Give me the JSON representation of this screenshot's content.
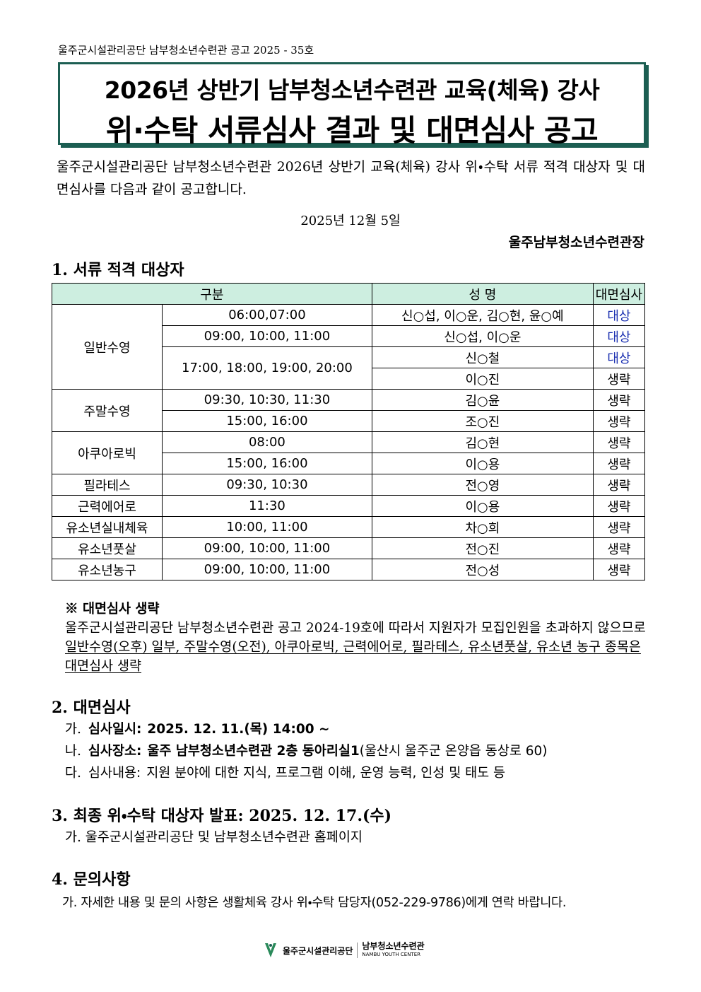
{
  "header": {
    "notice_no": "울주군시설관리공단 남부청소년수련관 공고 2025 - 35호",
    "title_line1": "2026년 상반기 남부청소년수련관 교육(체육) 강사",
    "title_line2": "위·수탁 서류심사 결과 및 대면심사 공고"
  },
  "intro": "울주군시설관리공단 남부청소년수련관 2026년 상반기 교육(체육) 강사 위・수탁 서류 적격 대상자 및 대면심사를 다음과 같이 공고합니다.",
  "date": "2025년 12월 5일",
  "issuer": "울주남부청소년수련관장",
  "section1": {
    "heading": "1. 서류 적격 대상자",
    "table": {
      "headers": [
        "구분",
        "성 명",
        "대면심사"
      ],
      "groups": [
        {
          "category": "일반수영",
          "slots": [
            {
              "time": "06:00,07:00",
              "entries": [
                {
                  "name": "신○섭, 이○운, 김○현, 윤○예",
                  "result": "대상",
                  "color": "#1a2fb0"
                }
              ]
            },
            {
              "time": "09:00, 10:00, 11:00",
              "entries": [
                {
                  "name": "신○섭, 이○운",
                  "result": "대상",
                  "color": "#1a2fb0"
                }
              ]
            },
            {
              "time": "17:00, 18:00, 19:00, 20:00",
              "entries": [
                {
                  "name": "신○철",
                  "result": "대상",
                  "color": "#1a2fb0"
                },
                {
                  "name": "이○진",
                  "result": "생략",
                  "color": "#000000"
                }
              ]
            }
          ]
        },
        {
          "category": "주말수영",
          "slots": [
            {
              "time": "09:30, 10:30, 11:30",
              "entries": [
                {
                  "name": "김○윤",
                  "result": "생략",
                  "color": "#000000"
                }
              ]
            },
            {
              "time": "15:00, 16:00",
              "entries": [
                {
                  "name": "조○진",
                  "result": "생략",
                  "color": "#000000"
                }
              ]
            }
          ]
        },
        {
          "category": "아쿠아로빅",
          "slots": [
            {
              "time": "08:00",
              "entries": [
                {
                  "name": "김○현",
                  "result": "생략",
                  "color": "#000000"
                }
              ]
            },
            {
              "time": "15:00, 16:00",
              "entries": [
                {
                  "name": "이○용",
                  "result": "생략",
                  "color": "#000000"
                }
              ]
            }
          ]
        },
        {
          "category": "필라테스",
          "slots": [
            {
              "time": "09:30, 10:30",
              "entries": [
                {
                  "name": "전○영",
                  "result": "생략",
                  "color": "#000000"
                }
              ]
            }
          ]
        },
        {
          "category": "근력에어로",
          "slots": [
            {
              "time": "11:30",
              "entries": [
                {
                  "name": "이○용",
                  "result": "생략",
                  "color": "#000000"
                }
              ]
            }
          ]
        },
        {
          "category": "유소년실내체육",
          "slots": [
            {
              "time": "10:00, 11:00",
              "entries": [
                {
                  "name": "차○희",
                  "result": "생략",
                  "color": "#000000"
                }
              ]
            }
          ]
        },
        {
          "category": "유소년풋살",
          "slots": [
            {
              "time": "09:00, 10:00, 11:00",
              "entries": [
                {
                  "name": "전○진",
                  "result": "생략",
                  "color": "#000000"
                }
              ]
            }
          ]
        },
        {
          "category": "유소년농구",
          "slots": [
            {
              "time": "09:00, 10:00, 11:00",
              "entries": [
                {
                  "name": "전○성",
                  "result": "생략",
                  "color": "#000000"
                }
              ]
            }
          ]
        }
      ]
    },
    "note": {
      "heading": "※ 대면심사 생략",
      "text": "울주군시설관리공단 남부청소년수련관 공고 2024-19호에 따라서 지원자가 모집인원을 초과하지 않으므로 ",
      "underlined": "일반수영(오후) 일부, 주말수영(오전), 아쿠아로빅, 근력에어로, 필라테스, 유소년풋살, 유소년 농구 종목은 대면심사 생략"
    }
  },
  "section2": {
    "heading": "2. 대면심사",
    "items": [
      {
        "marker": "가.",
        "label": "심사일시:",
        "value": "2025. 12. 11.(목) 14:00 ~",
        "extra": null
      },
      {
        "marker": "나.",
        "label": "심사장소:",
        "value": "울주 남부청소년수련관 2층 동아리실1",
        "extra": "(울산시 울주군 온양읍 동상로 60)"
      },
      {
        "marker": "다.",
        "label": "심사내용:",
        "value": null,
        "extra": "지원 분야에 대한 지식, 프로그램 이해, 운영 능력, 인성 및 태도 등"
      }
    ]
  },
  "section3": {
    "heading": "3. 최종 위・수탁 대상자 발표: 2025. 12. 17.(수)",
    "item": "가. 울주군시설관리공단 및 남부청소년수련관 홈페이지"
  },
  "section4": {
    "heading": "4. 문의사항",
    "item": "가. 자세한 내용 및 문의 사항은 생활체육 강사 위・수탁 담당자(052-229-9786)에게 연락 바랍니다."
  },
  "footer": {
    "org": "울주군시설관리공단",
    "center": "남부청소년수련관",
    "center_en": "NAMBU YOUTH CENTER"
  }
}
